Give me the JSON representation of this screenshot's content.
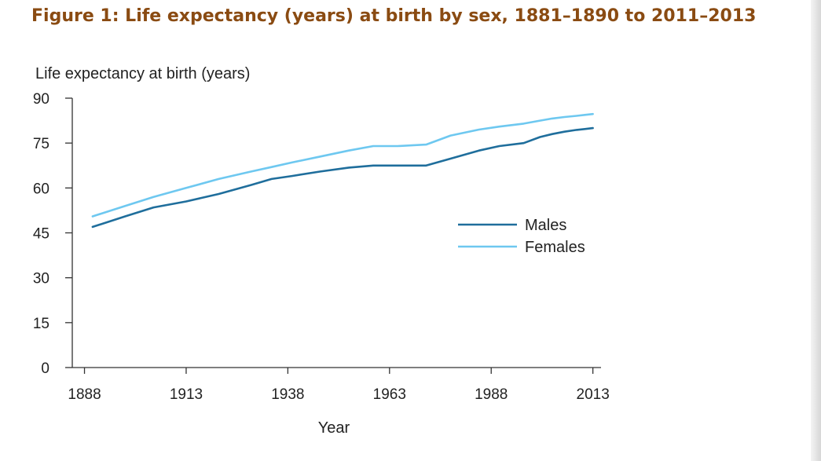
{
  "page": {
    "title": "Figure 1: Life expectancy (years) at birth by sex, 1881–1890 to 2011–2013"
  },
  "chart_data": {
    "type": "line",
    "title": "Figure 1: Life expectancy (years) at birth by sex, 1881–1890 to 2011–2013",
    "xlabel": "Year",
    "ylabel": "Life expectancy at birth (years)",
    "xlim": [
      1885,
      2015
    ],
    "ylim": [
      0,
      90
    ],
    "x_ticks": [
      1888,
      1913,
      1938,
      1963,
      1988,
      2013
    ],
    "y_ticks": [
      0,
      15,
      30,
      45,
      60,
      75,
      90
    ],
    "grid": false,
    "legend_position": "middle-right",
    "series": [
      {
        "name": "Males",
        "color": "#1f6e9c",
        "x": [
          1890,
          1898,
          1905,
          1913,
          1921,
          1929,
          1934,
          1939,
          1946,
          1953,
          1959,
          1965,
          1972,
          1978,
          1985,
          1990,
          1996,
          2000,
          2003,
          2006,
          2009,
          2011,
          2013
        ],
        "y": [
          47.0,
          50.5,
          53.5,
          55.5,
          58.0,
          61.0,
          63.0,
          64.0,
          65.5,
          66.8,
          67.5,
          67.5,
          67.5,
          69.8,
          72.5,
          74.0,
          75.0,
          77.0,
          78.0,
          78.8,
          79.4,
          79.7,
          80.0
        ]
      },
      {
        "name": "Females",
        "color": "#6ec8f0",
        "x": [
          1890,
          1898,
          1905,
          1913,
          1921,
          1929,
          1934,
          1939,
          1946,
          1953,
          1959,
          1965,
          1972,
          1978,
          1985,
          1990,
          1996,
          2000,
          2003,
          2006,
          2009,
          2011,
          2013
        ],
        "y": [
          50.5,
          54.0,
          57.0,
          60.0,
          63.0,
          65.5,
          67.0,
          68.5,
          70.5,
          72.5,
          74.0,
          74.0,
          74.5,
          77.5,
          79.5,
          80.5,
          81.5,
          82.5,
          83.2,
          83.7,
          84.1,
          84.4,
          84.7
        ]
      }
    ]
  }
}
